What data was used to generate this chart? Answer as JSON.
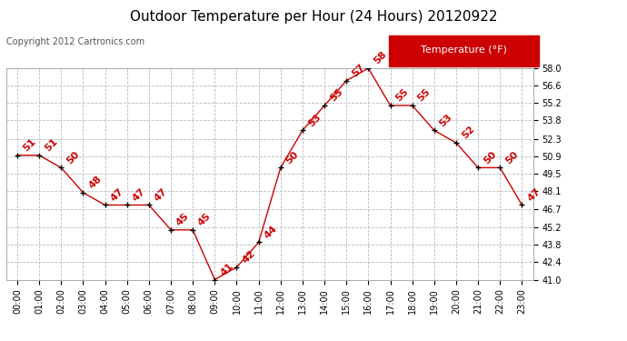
{
  "title": "Outdoor Temperature per Hour (24 Hours) 20120922",
  "copyright": "Copyright 2012 Cartronics.com",
  "hours": [
    "00:00",
    "01:00",
    "02:00",
    "03:00",
    "04:00",
    "05:00",
    "06:00",
    "07:00",
    "08:00",
    "09:00",
    "10:00",
    "11:00",
    "12:00",
    "13:00",
    "14:00",
    "15:00",
    "16:00",
    "17:00",
    "18:00",
    "19:00",
    "20:00",
    "21:00",
    "22:00",
    "23:00"
  ],
  "temperatures": [
    51,
    51,
    50,
    48,
    47,
    47,
    47,
    45,
    45,
    41,
    42,
    44,
    50,
    53,
    55,
    57,
    58,
    55,
    55,
    53,
    52,
    50,
    50,
    47
  ],
  "line_color": "#cc0000",
  "marker_color": "#000000",
  "label_color": "#cc0000",
  "bg_color": "#ffffff",
  "grid_color": "#bbbbbb",
  "ylim_min": 41.0,
  "ylim_max": 58.0,
  "yticks": [
    41.0,
    42.4,
    43.8,
    45.2,
    46.7,
    48.1,
    49.5,
    50.9,
    52.3,
    53.8,
    55.2,
    56.6,
    58.0
  ],
  "ytick_labels": [
    "41.0",
    "42.4",
    "43.8",
    "45.2",
    "46.7",
    "48.1",
    "49.5",
    "50.9",
    "52.3",
    "53.8",
    "55.2",
    "56.6",
    "58.0"
  ],
  "legend_label": "Temperature (°F)",
  "legend_bg": "#cc0000",
  "legend_text_color": "#ffffff",
  "title_fontsize": 11,
  "copyright_fontsize": 7,
  "label_fontsize": 8,
  "axis_label_fontsize": 7
}
